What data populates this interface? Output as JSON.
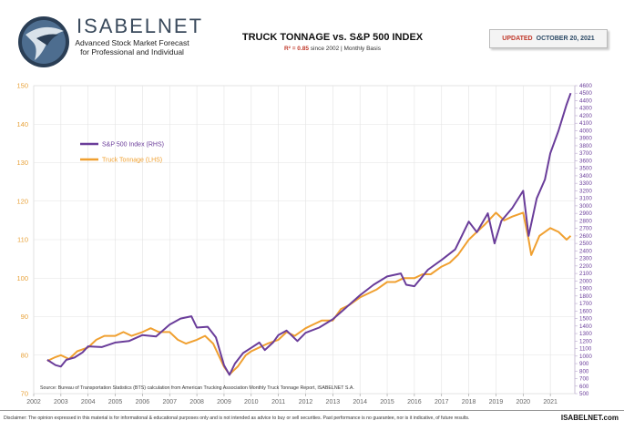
{
  "header": {
    "brand": "ISABELNET",
    "brand_sub1": "Advanced Stock Market Forecast",
    "brand_sub2": "for Professional and Individual",
    "title": "TRUCK TONNAGE vs. S&P 500 INDEX",
    "subtitle_r2": "R² = 0.85",
    "subtitle_rest": " since 2002 | Monthly Basis",
    "updated_label": "UPDATED",
    "updated_date": "OCTOBER 20, 2021"
  },
  "footer": {
    "source": "Source: Bureau of Transportation Statistics (BTS) calculation from American Trucking Association Monthly Truck Tonnage Report, ISABELNET S.A.",
    "disclaimer": "Disclaimer: The opinion expressed in this material is for informational & educational purposes only and is not intended as advice to buy or sell securities. Past performance is no guarantee, nor is it indicative, of future results.",
    "site": "ISABELNET.com"
  },
  "colors": {
    "sp500": "#6a3d9a",
    "truck": "#f0a030",
    "left_axis": "#e8a23a",
    "right_axis": "#6a3d9a",
    "grid": "#e3e3e3",
    "brand": "#3a4a5c"
  },
  "icons": {
    "logo": "eagle-globe-logo-icon"
  },
  "chart_data": {
    "type": "line",
    "xlim": [
      2002,
      2021.9
    ],
    "x_ticks": [
      "2002",
      "2003",
      "2004",
      "2005",
      "2006",
      "2007",
      "2008",
      "2009",
      "2010",
      "2011",
      "2012",
      "2013",
      "2014",
      "2015",
      "2016",
      "2017",
      "2018",
      "2019",
      "2020",
      "2021"
    ],
    "y_left": {
      "lim": [
        70,
        150
      ],
      "ticks": [
        "70",
        "80",
        "90",
        "100",
        "110",
        "120",
        "130",
        "140",
        "150"
      ]
    },
    "y_right": {
      "lim": [
        500,
        4600
      ],
      "ticks": [
        "500",
        "600",
        "700",
        "800",
        "900",
        "1000",
        "1100",
        "1200",
        "1300",
        "1400",
        "1500",
        "1600",
        "1700",
        "1800",
        "1900",
        "2000",
        "2100",
        "2200",
        "2300",
        "2400",
        "2500",
        "2600",
        "2700",
        "2800",
        "2900",
        "3000",
        "3100",
        "3200",
        "3300",
        "3400",
        "3500",
        "3600",
        "3700",
        "3800",
        "3900",
        "4000",
        "4100",
        "4200",
        "4300",
        "4400",
        "4500",
        "4600"
      ]
    },
    "legend": "top-left",
    "series": [
      {
        "name": "S&P 500 Index (RHS)",
        "axis": "right",
        "x": [
          2002.5,
          2002.8,
          2003.0,
          2003.2,
          2003.5,
          2003.8,
          2004.0,
          2004.5,
          2005.0,
          2005.5,
          2006.0,
          2006.5,
          2007.0,
          2007.4,
          2007.8,
          2008.0,
          2008.4,
          2008.7,
          2009.0,
          2009.2,
          2009.4,
          2009.7,
          2010.0,
          2010.3,
          2010.5,
          2010.8,
          2011.0,
          2011.3,
          2011.7,
          2012.0,
          2012.5,
          2013.0,
          2013.5,
          2014.0,
          2014.5,
          2015.0,
          2015.5,
          2015.7,
          2016.0,
          2016.5,
          2017.0,
          2017.5,
          2018.0,
          2018.3,
          2018.7,
          2018.95,
          2019.2,
          2019.6,
          2020.0,
          2020.2,
          2020.5,
          2020.8,
          2021.0,
          2021.3,
          2021.6,
          2021.75
        ],
        "values": [
          950,
          880,
          860,
          950,
          980,
          1050,
          1130,
          1120,
          1180,
          1200,
          1280,
          1260,
          1420,
          1500,
          1530,
          1380,
          1390,
          1250,
          880,
          750,
          900,
          1040,
          1110,
          1180,
          1080,
          1180,
          1280,
          1340,
          1200,
          1310,
          1380,
          1490,
          1650,
          1810,
          1950,
          2060,
          2100,
          1950,
          1930,
          2150,
          2280,
          2420,
          2790,
          2650,
          2900,
          2500,
          2800,
          2970,
          3200,
          2600,
          3100,
          3350,
          3700,
          4000,
          4350,
          4500
        ]
      },
      {
        "name": "Truck Tonnage (LHS)",
        "axis": "left",
        "x": [
          2002.5,
          2002.8,
          2003.0,
          2003.3,
          2003.6,
          2004.0,
          2004.3,
          2004.6,
          2005.0,
          2005.3,
          2005.6,
          2006.0,
          2006.3,
          2006.6,
          2007.0,
          2007.3,
          2007.6,
          2008.0,
          2008.3,
          2008.6,
          2009.0,
          2009.2,
          2009.5,
          2009.8,
          2010.0,
          2010.3,
          2010.6,
          2011.0,
          2011.3,
          2011.6,
          2012.0,
          2012.3,
          2012.6,
          2013.0,
          2013.3,
          2013.6,
          2014.0,
          2014.3,
          2014.6,
          2015.0,
          2015.3,
          2015.6,
          2016.0,
          2016.3,
          2016.6,
          2017.0,
          2017.3,
          2017.6,
          2018.0,
          2018.3,
          2018.6,
          2019.0,
          2019.3,
          2019.6,
          2020.0,
          2020.2,
          2020.3,
          2020.6,
          2021.0,
          2021.3,
          2021.6,
          2021.75
        ],
        "values": [
          78.5,
          79.5,
          80,
          79,
          81,
          82,
          84,
          85,
          85,
          86,
          85,
          86,
          87,
          86,
          86,
          84,
          83,
          84,
          85,
          83,
          77,
          75,
          77,
          80,
          81,
          82,
          83,
          84,
          86,
          85,
          87,
          88,
          89,
          89,
          92,
          93,
          95,
          96,
          97,
          99,
          99,
          100,
          100,
          101,
          101,
          103,
          104,
          106,
          110,
          112,
          114,
          117,
          115,
          116,
          117,
          110,
          106,
          111,
          113,
          112,
          110,
          111
        ]
      }
    ]
  }
}
